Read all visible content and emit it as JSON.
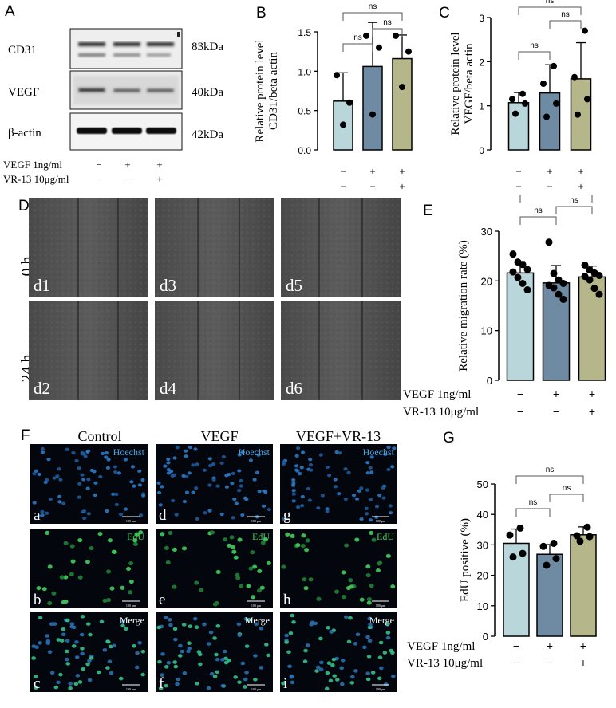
{
  "panels": {
    "A": "A",
    "B": "B",
    "C": "C",
    "D": "D",
    "E": "E",
    "F": "F",
    "G": "G"
  },
  "blot": {
    "rows": [
      {
        "label": "CD31",
        "kda": "83kDa"
      },
      {
        "label": "VEGF",
        "kda": "40kDa"
      },
      {
        "label": "β-actin",
        "kda": "42kDa"
      }
    ],
    "conditions": [
      {
        "label": "VEGF 1ng/ml",
        "signs": [
          "−",
          "+",
          "+"
        ]
      },
      {
        "label": "VR-13 10μg/ml",
        "signs": [
          "−",
          "−",
          "+"
        ]
      }
    ]
  },
  "groups": {
    "control": "Control",
    "vegf": "VEGF",
    "combo": "VEGF+VR-13"
  },
  "wound": {
    "rows": [
      "0 h",
      "24 h"
    ],
    "cells": [
      "d1",
      "d3",
      "d5",
      "d2",
      "d4",
      "d6"
    ]
  },
  "edu_imaging": {
    "stains": [
      "Hoechst",
      "EdU",
      "Merge"
    ],
    "cells": [
      "a",
      "d",
      "g",
      "b",
      "e",
      "h",
      "c",
      "f",
      "i"
    ],
    "scale": "100 μm"
  },
  "sig": "ns",
  "colors": {
    "control": "#b9d6db",
    "vegf": "#6f8ba3",
    "combo": "#b5b68a"
  },
  "chart_data": [
    {
      "panel": "B",
      "type": "bar",
      "ylabel": "Relative protein level CD31/beta actin",
      "ylim": [
        0,
        1.5
      ],
      "yticks": [
        "0.0",
        "0.5",
        "1.0",
        "1.5"
      ],
      "categories": [
        "control",
        "vegf",
        "combo"
      ],
      "values": [
        0.62,
        1.06,
        1.16
      ],
      "errors": [
        0.36,
        0.56,
        0.3
      ],
      "points": [
        [
          0.95,
          0.6,
          0.32
        ],
        [
          1.45,
          1.3,
          0.45
        ],
        [
          1.45,
          1.25,
          0.8
        ]
      ],
      "x_signs": [
        [
          "−",
          "+",
          "+"
        ],
        [
          "−",
          "−",
          "+"
        ]
      ],
      "comparisons": [
        {
          "pair": [
            0,
            1
          ],
          "label": "ns"
        },
        {
          "pair": [
            1,
            2
          ],
          "label": "ns"
        },
        {
          "pair": [
            0,
            2
          ],
          "label": "ns"
        }
      ]
    },
    {
      "panel": "C",
      "type": "bar",
      "ylabel": "Relative protein level VEGF/beta actin",
      "ylim": [
        0,
        3
      ],
      "yticks": [
        "0",
        "1",
        "2",
        "3"
      ],
      "categories": [
        "control",
        "vegf",
        "combo"
      ],
      "values": [
        1.07,
        1.29,
        1.61
      ],
      "errors": [
        0.23,
        0.64,
        0.82
      ],
      "points": [
        [
          1.27,
          1.15,
          1.05,
          0.82
        ],
        [
          1.9,
          1.5,
          1.05,
          0.75
        ],
        [
          2.7,
          1.65,
          1.15,
          0.8
        ]
      ],
      "x_signs": [
        [
          "−",
          "+",
          "+"
        ],
        [
          "−",
          "−",
          "+"
        ]
      ],
      "comparisons": [
        {
          "pair": [
            0,
            1
          ],
          "label": "ns"
        },
        {
          "pair": [
            1,
            2
          ],
          "label": "ns"
        },
        {
          "pair": [
            0,
            2
          ],
          "label": "ns"
        }
      ]
    },
    {
      "panel": "E",
      "type": "bar",
      "ylabel": "Relative migration rate (%)",
      "ylim": [
        0,
        30
      ],
      "yticks": [
        "0",
        "10",
        "20",
        "30"
      ],
      "categories": [
        "control",
        "vegf",
        "combo"
      ],
      "values": [
        21.6,
        19.6,
        20.8
      ],
      "errors": [
        2.3,
        3.5,
        2.2
      ],
      "points": [
        [
          25.4,
          23.8,
          23.3,
          22.3,
          21.8,
          20.7,
          19.5,
          18.2
        ],
        [
          27.8,
          21.5,
          20.2,
          19.5,
          19.1,
          18.6,
          17.3,
          16.3
        ],
        [
          23.2,
          22.2,
          21.6,
          21.1,
          20.9,
          20.2,
          18.5,
          17.3
        ]
      ],
      "x_signs": [
        [
          "−",
          "+",
          "+"
        ],
        [
          "−",
          "−",
          "+"
        ]
      ],
      "comparisons": [
        {
          "pair": [
            0,
            1
          ],
          "label": "ns"
        },
        {
          "pair": [
            1,
            2
          ],
          "label": "ns"
        },
        {
          "pair": [
            0,
            2
          ],
          "label": "ns"
        }
      ]
    },
    {
      "panel": "G",
      "type": "bar",
      "ylabel": "EdU positive (%)",
      "ylim": [
        0,
        50
      ],
      "yticks": [
        "0",
        "10",
        "20",
        "30",
        "40",
        "50"
      ],
      "categories": [
        "control",
        "vegf",
        "combo"
      ],
      "values": [
        30.5,
        26.9,
        33.3
      ],
      "errors": [
        4.7,
        3.2,
        2.6
      ],
      "points": [
        [
          35.5,
          33.2,
          27.2,
          26.0
        ],
        [
          30.5,
          29.5,
          25.5,
          23.3
        ],
        [
          35.8,
          33.0,
          32.7,
          31.2
        ]
      ],
      "x_signs": [
        [
          "−",
          "+",
          "+"
        ],
        [
          "−",
          "−",
          "+"
        ]
      ],
      "comparisons": [
        {
          "pair": [
            0,
            1
          ],
          "label": "ns"
        },
        {
          "pair": [
            1,
            2
          ],
          "label": "ns"
        },
        {
          "pair": [
            0,
            2
          ],
          "label": "ns"
        }
      ]
    }
  ]
}
